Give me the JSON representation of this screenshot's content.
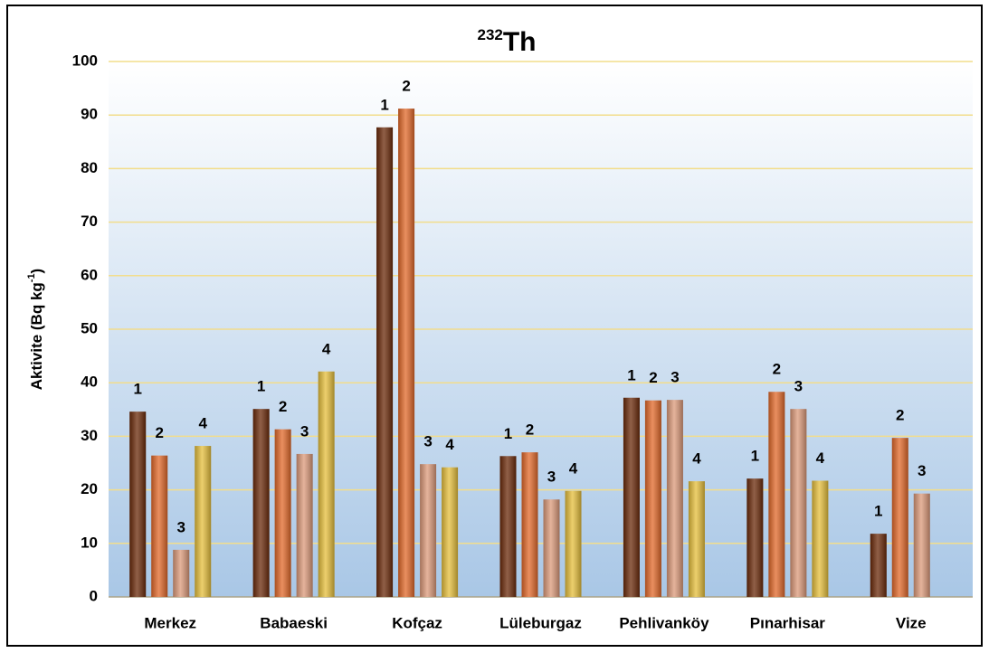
{
  "chart_data": {
    "type": "bar",
    "title": {
      "superscript": "232",
      "text": "Th"
    },
    "y_label": {
      "text": "Aktivite (Bq kg",
      "superscript": "-1",
      "suffix": ")"
    },
    "categories": [
      "Merkez",
      "Babaeski",
      "Kofçaz",
      "Lüleburgaz",
      "Pehlivanköy",
      "Pınarhisar",
      "Vize"
    ],
    "series": [
      {
        "name": "1",
        "color": "#6b2a0a",
        "values": [
          34.6,
          35.1,
          87.7,
          26.3,
          37.2,
          22.1,
          11.8
        ]
      },
      {
        "name": "2",
        "color": "#e2692a",
        "values": [
          26.4,
          31.3,
          91.2,
          27.0,
          36.7,
          38.3,
          29.7
        ]
      },
      {
        "name": "3",
        "color": "#dc9a7a",
        "values": [
          8.8,
          26.7,
          24.8,
          18.2,
          36.8,
          35.1,
          19.3
        ]
      },
      {
        "name": "4",
        "color": "#e6bf3c",
        "values": [
          28.2,
          42.1,
          24.2,
          19.8,
          21.6,
          21.7,
          null
        ]
      }
    ],
    "ylim": [
      0,
      100
    ],
    "yticks": [
      0,
      10,
      20,
      30,
      40,
      50,
      60,
      70,
      80,
      90,
      100
    ],
    "grid": true
  }
}
